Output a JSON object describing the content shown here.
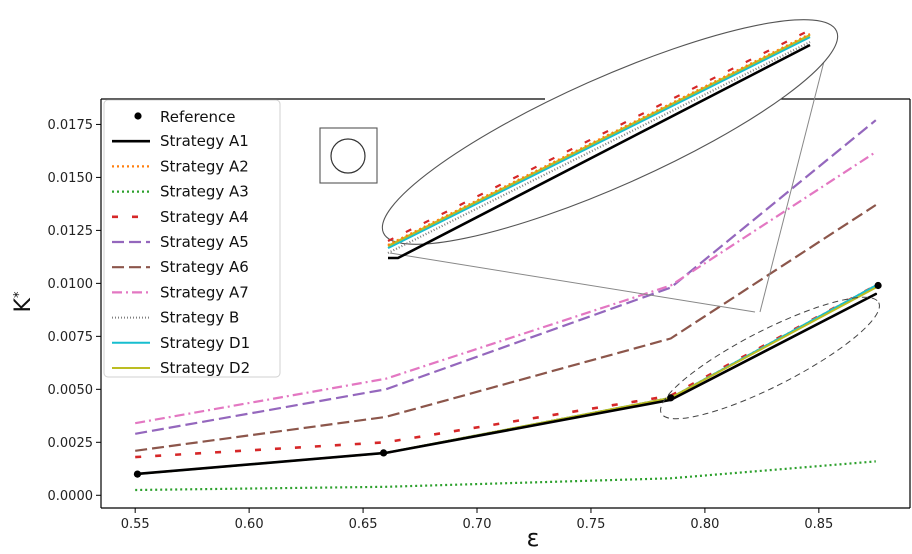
{
  "chart_data": {
    "type": "line",
    "xlabel": "ε",
    "ylabel": "K*",
    "xlim": [
      0.535,
      0.89
    ],
    "ylim": [
      -0.0006,
      0.0187
    ],
    "xticks": [
      {
        "v": 0.55,
        "label": "0.55"
      },
      {
        "v": 0.6,
        "label": "0.60"
      },
      {
        "v": 0.65,
        "label": "0.65"
      },
      {
        "v": 0.7,
        "label": "0.70"
      },
      {
        "v": 0.75,
        "label": "0.75"
      },
      {
        "v": 0.8,
        "label": "0.80"
      },
      {
        "v": 0.85,
        "label": "0.85"
      }
    ],
    "yticks": [
      {
        "v": 0.0,
        "label": "0.0000"
      },
      {
        "v": 0.0025,
        "label": "0.0025"
      },
      {
        "v": 0.005,
        "label": "0.0050"
      },
      {
        "v": 0.0075,
        "label": "0.0075"
      },
      {
        "v": 0.01,
        "label": "0.0100"
      },
      {
        "v": 0.0125,
        "label": "0.0125"
      },
      {
        "v": 0.015,
        "label": "0.0150"
      },
      {
        "v": 0.0175,
        "label": "0.0175"
      }
    ],
    "grid": false,
    "legend_position": "top-left",
    "reference": {
      "name": "Reference",
      "x": [
        0.551,
        0.659,
        0.785,
        0.876
      ],
      "y": [
        0.001,
        0.002,
        0.0046,
        0.0099
      ]
    },
    "series": [
      {
        "name": "Strategy A1",
        "color": "#000000",
        "style": "solid",
        "width": 2.6,
        "x": [
          0.55,
          0.66,
          0.785,
          0.875
        ],
        "y": [
          0.001,
          0.002,
          0.0045,
          0.0095
        ]
      },
      {
        "name": "Strategy A2",
        "color": "#ff7f0e",
        "style": "dotted",
        "width": 2.2,
        "x": [
          0.55,
          0.66,
          0.785,
          0.875
        ],
        "y": [
          0.001,
          0.002,
          0.0046,
          0.0099
        ]
      },
      {
        "name": "Strategy A3",
        "color": "#2ca02c",
        "style": "dotted",
        "width": 2.2,
        "x": [
          0.55,
          0.66,
          0.785,
          0.875
        ],
        "y": [
          0.00025,
          0.0004,
          0.0008,
          0.0016
        ]
      },
      {
        "name": "Strategy A4",
        "color": "#d62728",
        "style": "sparsedash",
        "width": 2.6,
        "x": [
          0.55,
          0.66,
          0.785,
          0.875
        ],
        "y": [
          0.0018,
          0.0025,
          0.0047,
          0.0099
        ]
      },
      {
        "name": "Strategy A5",
        "color": "#9467bd",
        "style": "dashed",
        "width": 2.2,
        "x": [
          0.55,
          0.66,
          0.785,
          0.875
        ],
        "y": [
          0.0029,
          0.005,
          0.0098,
          0.0177
        ]
      },
      {
        "name": "Strategy A6",
        "color": "#8c564b",
        "style": "dashed",
        "width": 2.2,
        "x": [
          0.55,
          0.66,
          0.785,
          0.875
        ],
        "y": [
          0.0021,
          0.0037,
          0.0074,
          0.0137
        ]
      },
      {
        "name": "Strategy A7",
        "color": "#e377c2",
        "style": "dashdot",
        "width": 2.2,
        "x": [
          0.55,
          0.66,
          0.785,
          0.875
        ],
        "y": [
          0.0034,
          0.0055,
          0.0099,
          0.0162
        ]
      },
      {
        "name": "Strategy B",
        "color": "#7f7f7f",
        "style": "finedot",
        "width": 2.0,
        "x": [
          0.55,
          0.66,
          0.785,
          0.875
        ],
        "y": [
          0.001,
          0.002,
          0.0046,
          0.0099
        ]
      },
      {
        "name": "Strategy D1",
        "color": "#17becf",
        "style": "solid",
        "width": 2.0,
        "x": [
          0.55,
          0.66,
          0.785,
          0.875
        ],
        "y": [
          0.001,
          0.002,
          0.0046,
          0.0099
        ]
      },
      {
        "name": "Strategy D2",
        "color": "#bcbd22",
        "style": "solid",
        "width": 2.0,
        "x": [
          0.55,
          0.66,
          0.785,
          0.875
        ],
        "y": [
          0.001,
          0.002,
          0.0046,
          0.0098
        ]
      }
    ]
  }
}
